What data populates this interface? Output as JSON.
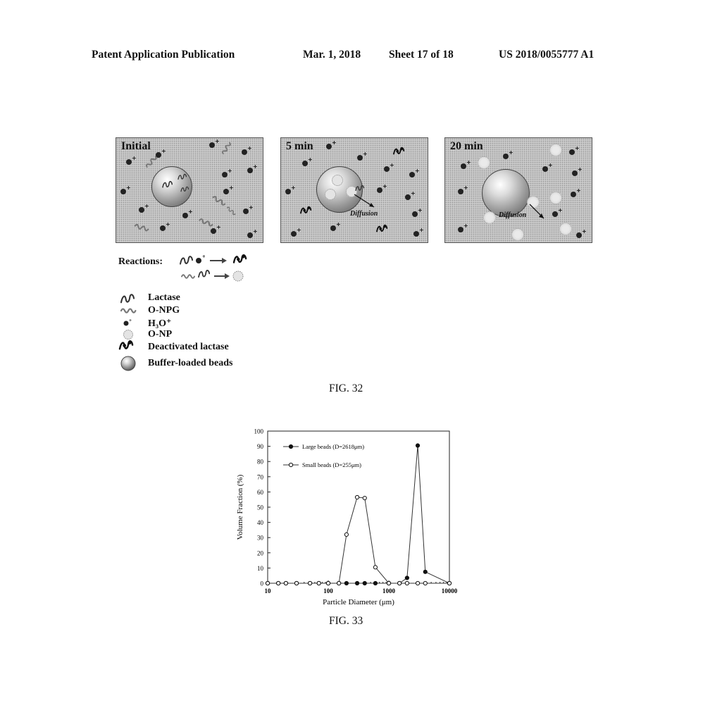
{
  "header": {
    "publication": "Patent Application Publication",
    "date": "Mar. 1, 2018",
    "sheet": "Sheet 17 of 18",
    "number": "US 2018/0055777 A1"
  },
  "fig32": {
    "panels": [
      "Initial",
      "5 min",
      "20 min"
    ],
    "diffusion_label": "Diffusion",
    "reactions_label": "Reactions:",
    "legend": [
      "Lactase",
      "O-NPG",
      "H₃O⁺",
      "O-NP",
      "Deactivated lactase",
      "Buffer-loaded beads"
    ],
    "caption": "FIG. 32"
  },
  "fig33": {
    "caption": "FIG. 33",
    "chart_data": {
      "type": "line",
      "xlabel": "Particle Diameter (μm)",
      "ylabel": "Volume Fraction (%)",
      "xscale": "log",
      "xlim": [
        10,
        10000
      ],
      "ylim": [
        0,
        100
      ],
      "xticks": [
        "10",
        "100",
        "1000",
        "10000"
      ],
      "yticks": [
        "0",
        "10",
        "20",
        "30",
        "40",
        "50",
        "60",
        "70",
        "80",
        "90",
        "100"
      ],
      "legend_position": "top-left",
      "series": [
        {
          "name": "Large beads (D=2618μm)",
          "marker": "filled-circle",
          "points": [
            [
              10,
              0
            ],
            [
              15,
              0
            ],
            [
              20,
              0
            ],
            [
              30,
              0
            ],
            [
              50,
              0
            ],
            [
              70,
              0
            ],
            [
              100,
              0
            ],
            [
              150,
              0
            ],
            [
              200,
              0
            ],
            [
              300,
              0
            ],
            [
              400,
              0
            ],
            [
              600,
              0
            ],
            [
              1000,
              0
            ],
            [
              1500,
              0
            ],
            [
              2000,
              3.5
            ],
            [
              3000,
              90.5
            ],
            [
              4000,
              7.5
            ],
            [
              10000,
              0
            ]
          ]
        },
        {
          "name": "Small beads (D=255μm)",
          "marker": "open-circle",
          "points": [
            [
              10,
              0
            ],
            [
              15,
              0
            ],
            [
              20,
              0
            ],
            [
              30,
              0
            ],
            [
              50,
              0
            ],
            [
              70,
              0
            ],
            [
              100,
              0
            ],
            [
              150,
              0
            ],
            [
              200,
              32
            ],
            [
              300,
              56.5
            ],
            [
              400,
              56
            ],
            [
              600,
              10.5
            ],
            [
              1000,
              0
            ],
            [
              1500,
              0
            ],
            [
              2000,
              0
            ],
            [
              3000,
              0
            ],
            [
              4000,
              0
            ],
            [
              10000,
              0
            ]
          ]
        }
      ]
    }
  }
}
